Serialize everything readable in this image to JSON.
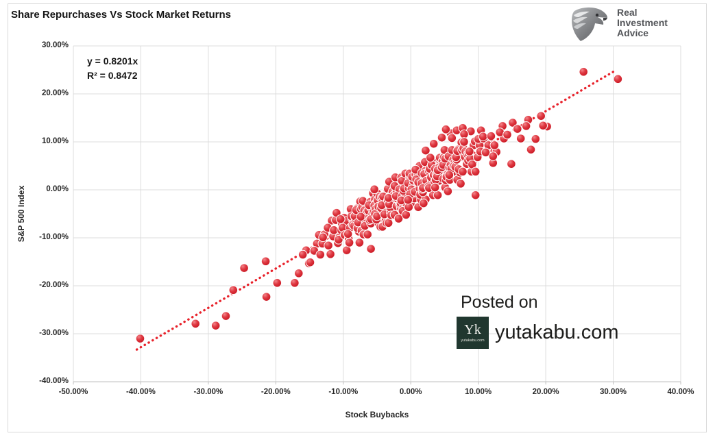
{
  "title": "Share Repurchases Vs Stock Market Returns",
  "brand": {
    "line1": "Real",
    "line2": "Investment",
    "line3": "Advice"
  },
  "annotation": {
    "equation_line1": "y = 0.8201x",
    "equation_line2": "R² = 0.8472"
  },
  "watermark": {
    "posted_on": "Posted on",
    "site": "yutakabu.com",
    "badge_monogram": "Yk",
    "badge_caption": "yutakabu.com"
  },
  "colors": {
    "point": "#d4242f",
    "point_highlight": "#f2858a",
    "point_dark": "#a80f18",
    "trend": "#e8222b",
    "grid": "#dcdcdc",
    "axis": "#bfbfbf",
    "badge_bg": "#20372f",
    "brand_gray": "#54565a"
  },
  "chart_data": {
    "type": "scatter",
    "title": "Share Repurchases Vs Stock Market Returns",
    "xlabel": "Stock Buybacks",
    "ylabel": "S&P 500 Index",
    "xlim": [
      -50,
      40
    ],
    "ylim": [
      -40,
      30
    ],
    "grid": true,
    "x_tick_values": [
      -50,
      -40,
      -30,
      -20,
      -10,
      0,
      10,
      20,
      30,
      40
    ],
    "x_tick_labels": [
      "-50.00%",
      "-40.00%",
      "-30.00%",
      "-20.00%",
      "-10.00%",
      "0.00%",
      "10.00%",
      "20.00%",
      "30.00%",
      "40.00%"
    ],
    "y_tick_values": [
      30,
      20,
      10,
      0,
      -10,
      -20,
      -30,
      -40
    ],
    "y_tick_labels": [
      "30.00%",
      "20.00%",
      "10.00%",
      "0.00%",
      "-10.00%",
      "-20.00%",
      "-30.00%",
      "-40.00%"
    ],
    "trendline": {
      "label": "y = 0.8201x",
      "slope": 0.8201,
      "r_squared": 0.8472,
      "x_start": -40.6,
      "x_end": 30.2,
      "style": "dotted",
      "color": "#e8222b"
    },
    "points": [
      [
        -40.1,
        -31.0
      ],
      [
        -31.9,
        -27.9
      ],
      [
        -28.9,
        -28.3
      ],
      [
        -27.4,
        -26.3
      ],
      [
        -26.3,
        -20.9
      ],
      [
        -24.7,
        -16.3
      ],
      [
        -21.5,
        -14.9
      ],
      [
        -21.4,
        -22.3
      ],
      [
        -19.8,
        -19.4
      ],
      [
        -17.2,
        -19.4
      ],
      [
        -16.6,
        -17.4
      ],
      [
        -15.5,
        -12.6
      ],
      [
        -15.1,
        -15.3
      ],
      [
        -14.9,
        -15.1
      ],
      [
        -16.0,
        -13.5
      ],
      [
        -5.9,
        -12.3
      ],
      [
        9.6,
        -1.1
      ],
      [
        25.6,
        24.6
      ],
      [
        30.7,
        23.1
      ],
      [
        19.3,
        15.4
      ],
      [
        20.2,
        13.2
      ],
      [
        19.6,
        13.4
      ],
      [
        17.4,
        14.6
      ],
      [
        15.1,
        14.0
      ],
      [
        13.6,
        13.3
      ],
      [
        17.1,
        13.3
      ],
      [
        13.8,
        10.7
      ],
      [
        17.8,
        8.4
      ],
      [
        16.3,
        10.7
      ],
      [
        18.5,
        10.6
      ],
      [
        14.9,
        5.4
      ],
      [
        12.2,
        5.6
      ],
      [
        11.8,
        9.7
      ],
      [
        10.9,
        10.9
      ],
      [
        12.4,
        8.1
      ],
      [
        12.7,
        7.9
      ],
      [
        13.2,
        12.0
      ],
      [
        14.3,
        11.5
      ],
      [
        15.8,
        12.7
      ],
      [
        4.6,
        10.9
      ],
      [
        5.9,
        11.8
      ],
      [
        6.8,
        12.4
      ],
      [
        3.4,
        9.6
      ],
      [
        7.7,
        12.9
      ],
      [
        8.9,
        12.2
      ],
      [
        2.2,
        8.2
      ],
      [
        5.2,
        12.6
      ],
      [
        6.1,
        10.8
      ],
      [
        7.9,
        11.6
      ],
      [
        -13.9,
        -11.2
      ],
      [
        -14.3,
        -12.7
      ],
      [
        -13.6,
        -9.4
      ],
      [
        -13.1,
        -11.2
      ],
      [
        -12.8,
        -9.3
      ],
      [
        -13.4,
        -13.5
      ],
      [
        -13.0,
        -9.9
      ],
      [
        -11.7,
        -6.4
      ],
      [
        -12.2,
        -11.6
      ],
      [
        -11.5,
        -9.7
      ],
      [
        -11.9,
        -13.4
      ],
      [
        -12.3,
        -7.9
      ],
      [
        -10.6,
        -9.9
      ],
      [
        -11.1,
        -6.3
      ],
      [
        -10.8,
        -11.1
      ],
      [
        -11.4,
        -8.4
      ],
      [
        -11.0,
        -4.8
      ],
      [
        -10.7,
        -10.4
      ],
      [
        -10.2,
        -7.1
      ],
      [
        -9.5,
        -12.6
      ],
      [
        -9.9,
        -5.8
      ],
      [
        -10.3,
        -8.4
      ],
      [
        -9.6,
        -6.5
      ],
      [
        -10.1,
        -7.9
      ],
      [
        -9.8,
        -9.4
      ],
      [
        -10.4,
        -6.1
      ],
      [
        -9.0,
        -7.9
      ],
      [
        -8.7,
        -6.0
      ],
      [
        -9.2,
        -10.2
      ],
      [
        -8.5,
        -6.6
      ],
      [
        -8.9,
        -4.0
      ],
      [
        -9.3,
        -9.2
      ],
      [
        -8.6,
        -7.3
      ],
      [
        -9.1,
        -11.0
      ],
      [
        -8.8,
        -5.5
      ],
      [
        -8.4,
        -7.5
      ],
      [
        -8.0,
        -3.9
      ],
      [
        -7.7,
        -8.7
      ],
      [
        -8.2,
        -6.0
      ],
      [
        -7.5,
        -2.4
      ],
      [
        -7.9,
        -8.0
      ],
      [
        -8.3,
        -5.5
      ],
      [
        -7.6,
        -11.0
      ],
      [
        -8.1,
        -4.2
      ],
      [
        -7.8,
        -6.8
      ],
      [
        -7.4,
        -4.0
      ],
      [
        -7.0,
        -5.4
      ],
      [
        -6.7,
        -6.9
      ],
      [
        -7.2,
        -3.6
      ],
      [
        -6.5,
        -6.2
      ],
      [
        -6.9,
        -4.3
      ],
      [
        -7.3,
        -8.5
      ],
      [
        -6.6,
        -4.9
      ],
      [
        -7.1,
        -2.3
      ],
      [
        -6.8,
        -7.5
      ],
      [
        -7.4,
        -5.6
      ],
      [
        -7.0,
        -9.3
      ],
      [
        -5.7,
        -3.0
      ],
      [
        -6.2,
        -5.8
      ],
      [
        -5.5,
        -2.2
      ],
      [
        -5.9,
        -7.0
      ],
      [
        -6.3,
        -4.3
      ],
      [
        -5.6,
        -0.7
      ],
      [
        -6.1,
        -6.3
      ],
      [
        -5.8,
        -3.8
      ],
      [
        -6.4,
        -9.3
      ],
      [
        -6.0,
        -2.5
      ],
      [
        -5.7,
        -5.1
      ],
      [
        -6.2,
        -3.2
      ],
      [
        -5.5,
        -4.6
      ],
      [
        -5.9,
        -6.1
      ],
      [
        -5.3,
        -2.0
      ],
      [
        -4.6,
        -4.6
      ],
      [
        -5.1,
        -2.7
      ],
      [
        -4.8,
        -6.9
      ],
      [
        -5.4,
        -3.3
      ],
      [
        -5.0,
        -0.7
      ],
      [
        -4.7,
        -5.9
      ],
      [
        -5.2,
        -4.0
      ],
      [
        -4.5,
        -7.7
      ],
      [
        -4.9,
        -2.2
      ],
      [
        -5.3,
        -5.0
      ],
      [
        -4.6,
        -1.4
      ],
      [
        -5.1,
        -6.2
      ],
      [
        -4.8,
        -3.5
      ],
      [
        -5.4,
        0.1
      ],
      [
        -5.0,
        -5.5
      ],
      [
        -3.7,
        -2.2
      ],
      [
        -4.2,
        -7.7
      ],
      [
        -3.5,
        -0.9
      ],
      [
        -3.9,
        -3.5
      ],
      [
        -4.3,
        -1.6
      ],
      [
        -3.6,
        -3.0
      ],
      [
        -4.1,
        -4.5
      ],
      [
        -3.8,
        -1.2
      ],
      [
        -4.4,
        -3.8
      ],
      [
        -4.0,
        -1.9
      ],
      [
        -3.7,
        -6.1
      ],
      [
        -4.2,
        -2.5
      ],
      [
        -3.5,
        0.1
      ],
      [
        -3.9,
        -5.1
      ],
      [
        -4.3,
        -3.2
      ],
      [
        -3.6,
        -6.9
      ],
      [
        -4.1,
        -1.4
      ],
      [
        -2.8,
        -3.4
      ],
      [
        -3.4,
        0.2
      ],
      [
        -3.0,
        -4.6
      ],
      [
        -2.7,
        -1.9
      ],
      [
        -3.2,
        1.7
      ],
      [
        -2.5,
        -3.9
      ],
      [
        -2.9,
        -1.4
      ],
      [
        -3.3,
        -6.9
      ],
      [
        -2.6,
        -0.1
      ],
      [
        -3.1,
        -2.7
      ],
      [
        -2.8,
        -0.8
      ],
      [
        -3.4,
        -2.2
      ],
      [
        -3.0,
        -3.7
      ],
      [
        -2.7,
        -0.4
      ],
      [
        -3.2,
        -3.0
      ],
      [
        -2.5,
        -1.1
      ],
      [
        -2.9,
        -5.3
      ],
      [
        -3.3,
        -1.7
      ],
      [
        -1.6,
        1.8
      ],
      [
        -2.1,
        -3.4
      ],
      [
        -1.8,
        -1.5
      ],
      [
        -2.4,
        -5.2
      ],
      [
        -2.0,
        0.3
      ],
      [
        -1.7,
        -2.5
      ],
      [
        -2.2,
        1.1
      ],
      [
        -1.5,
        -3.7
      ],
      [
        -1.9,
        -1.0
      ],
      [
        -2.3,
        2.6
      ],
      [
        -1.6,
        -3.0
      ],
      [
        -2.1,
        -0.5
      ],
      [
        -1.8,
        -6.0
      ],
      [
        -2.4,
        0.8
      ],
      [
        -2.0,
        -1.8
      ],
      [
        -1.7,
        0.1
      ],
      [
        -2.2,
        -1.3
      ],
      [
        -1.5,
        -2.8
      ],
      [
        -0.9,
        1.3
      ],
      [
        -1.3,
        -1.3
      ],
      [
        -0.6,
        0.6
      ],
      [
        -1.1,
        -3.6
      ],
      [
        -0.8,
        0.0
      ],
      [
        -1.4,
        2.6
      ],
      [
        -1.0,
        -2.6
      ],
      [
        -0.7,
        -0.7
      ],
      [
        -1.2,
        -4.4
      ],
      [
        -0.5,
        1.1
      ],
      [
        -0.9,
        -1.7
      ],
      [
        -1.3,
        1.9
      ],
      [
        -0.6,
        -2.9
      ],
      [
        -1.1,
        -0.2
      ],
      [
        -0.8,
        3.4
      ],
      [
        -1.4,
        -2.2
      ],
      [
        -1.0,
        0.3
      ],
      [
        -0.7,
        -5.2
      ],
      [
        -0.2,
        2.4
      ],
      [
        0.5,
        -0.2
      ],
      [
        0.1,
        1.7
      ],
      [
        -0.3,
        0.3
      ],
      [
        0.4,
        -1.2
      ],
      [
        -0.1,
        2.1
      ],
      [
        0.2,
        -0.5
      ],
      [
        -0.4,
        1.4
      ],
      [
        0.0,
        -2.8
      ],
      [
        0.3,
        0.8
      ],
      [
        -0.2,
        3.4
      ],
      [
        0.5,
        -1.8
      ],
      [
        0.1,
        0.1
      ],
      [
        -0.3,
        -3.6
      ],
      [
        0.4,
        1.9
      ],
      [
        -0.1,
        -0.9
      ],
      [
        0.2,
        2.7
      ],
      [
        -0.4,
        -2.1
      ],
      [
        1.0,
        1.4
      ],
      [
        1.3,
        5.0
      ],
      [
        0.8,
        -0.6
      ],
      [
        1.5,
        1.9
      ],
      [
        1.1,
        -3.6
      ],
      [
        0.7,
        3.2
      ],
      [
        1.4,
        0.6
      ],
      [
        0.9,
        2.5
      ],
      [
        1.2,
        1.1
      ],
      [
        0.6,
        -0.4
      ],
      [
        1.0,
        2.9
      ],
      [
        1.3,
        0.3
      ],
      [
        0.8,
        2.2
      ],
      [
        1.5,
        -2.0
      ],
      [
        1.1,
        1.6
      ],
      [
        0.7,
        4.2
      ],
      [
        1.4,
        -1.0
      ],
      [
        1.9,
        1.7
      ],
      [
        2.2,
        -2.0
      ],
      [
        1.6,
        3.5
      ],
      [
        2.0,
        0.7
      ],
      [
        2.3,
        4.3
      ],
      [
        1.8,
        -0.5
      ],
      [
        2.5,
        2.2
      ],
      [
        2.1,
        5.8
      ],
      [
        1.7,
        0.2
      ],
      [
        2.4,
        2.7
      ],
      [
        1.9,
        -2.8
      ],
      [
        2.2,
        4.0
      ],
      [
        1.6,
        1.4
      ],
      [
        2.0,
        3.3
      ],
      [
        2.3,
        1.9
      ],
      [
        1.8,
        0.4
      ],
      [
        3.5,
        4.6
      ],
      [
        3.1,
        2.0
      ],
      [
        2.7,
        3.9
      ],
      [
        3.4,
        -0.3
      ],
      [
        2.9,
        3.3
      ],
      [
        3.2,
        5.9
      ],
      [
        2.6,
        0.7
      ],
      [
        3.0,
        2.6
      ],
      [
        3.3,
        -1.1
      ],
      [
        2.8,
        4.4
      ],
      [
        3.5,
        1.6
      ],
      [
        3.1,
        5.2
      ],
      [
        2.7,
        0.4
      ],
      [
        3.4,
        3.1
      ],
      [
        2.9,
        6.7
      ],
      [
        4.2,
        1.9
      ],
      [
        3.6,
        4.4
      ],
      [
        4.0,
        -1.1
      ],
      [
        4.3,
        5.7
      ],
      [
        3.8,
        3.1
      ],
      [
        4.5,
        5.0
      ],
      [
        4.1,
        3.6
      ],
      [
        3.7,
        2.1
      ],
      [
        4.4,
        5.4
      ],
      [
        3.9,
        2.8
      ],
      [
        4.2,
        4.7
      ],
      [
        3.6,
        0.5
      ],
      [
        4.0,
        4.1
      ],
      [
        4.3,
        6.7
      ],
      [
        4.8,
        2.3
      ],
      [
        5.5,
        4.2
      ],
      [
        5.1,
        0.5
      ],
      [
        4.7,
        6.0
      ],
      [
        5.4,
        3.2
      ],
      [
        4.9,
        6.8
      ],
      [
        5.2,
        2.0
      ],
      [
        4.6,
        4.7
      ],
      [
        5.0,
        8.3
      ],
      [
        5.3,
        2.7
      ],
      [
        4.8,
        5.2
      ],
      [
        5.5,
        -0.3
      ],
      [
        5.1,
        6.5
      ],
      [
        5.7,
        4.7
      ],
      [
        6.4,
        6.6
      ],
      [
        5.9,
        5.2
      ],
      [
        6.2,
        3.7
      ],
      [
        5.6,
        7.0
      ],
      [
        6.0,
        4.4
      ],
      [
        6.3,
        6.3
      ],
      [
        5.8,
        2.1
      ],
      [
        6.5,
        5.7
      ],
      [
        6.1,
        8.3
      ],
      [
        5.7,
        3.1
      ],
      [
        6.4,
        5.0
      ],
      [
        6.9,
        2.1
      ],
      [
        7.2,
        7.6
      ],
      [
        6.6,
        4.8
      ],
      [
        7.0,
        8.4
      ],
      [
        7.3,
        3.6
      ],
      [
        6.8,
        6.3
      ],
      [
        7.5,
        9.9
      ],
      [
        7.1,
        4.3
      ],
      [
        6.7,
        6.8
      ],
      [
        7.4,
        1.3
      ],
      [
        6.9,
        8.1
      ],
      [
        8.2,
        6.4
      ],
      [
        7.6,
        8.3
      ],
      [
        8.0,
        6.9
      ],
      [
        8.3,
        5.4
      ],
      [
        7.8,
        8.7
      ],
      [
        8.5,
        6.1
      ],
      [
        8.1,
        8.0
      ],
      [
        7.7,
        3.8
      ],
      [
        8.4,
        7.4
      ],
      [
        7.9,
        10.0
      ],
      [
        9.2,
        5.6
      ],
      [
        8.6,
        7.5
      ],
      [
        9.0,
        3.8
      ],
      [
        9.3,
        9.3
      ],
      [
        8.8,
        6.5
      ],
      [
        9.5,
        10.1
      ],
      [
        9.1,
        5.3
      ],
      [
        8.7,
        8.0
      ],
      [
        10.4,
        12.4
      ],
      [
        9.9,
        6.8
      ],
      [
        10.2,
        9.3
      ],
      [
        9.6,
        3.8
      ],
      [
        10.0,
        10.6
      ],
      [
        10.3,
        8.0
      ],
      [
        10.8,
        10.7
      ],
      [
        11.5,
        9.3
      ],
      [
        11.1,
        7.8
      ],
      [
        10.7,
        11.1
      ],
      [
        12.4,
        9.3
      ],
      [
        11.9,
        11.2
      ],
      [
        12.2,
        7.0
      ]
    ]
  }
}
